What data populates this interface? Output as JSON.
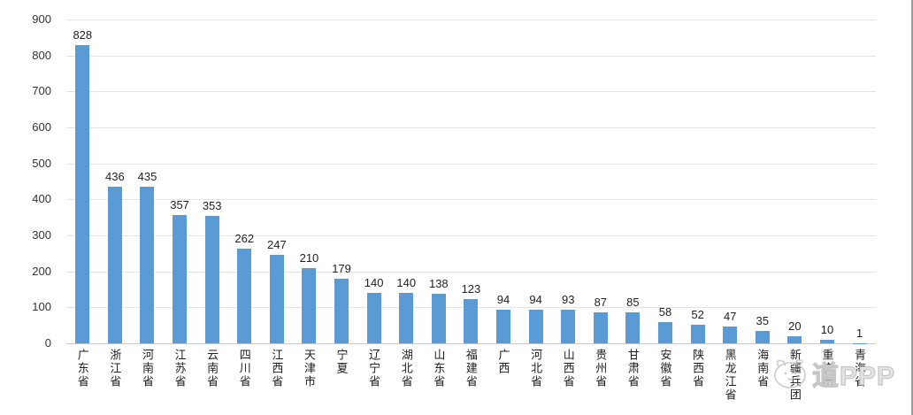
{
  "watermark": {
    "text": "道PPP",
    "logo_icon": "mascot-doodle-icon",
    "color": "#cccccc"
  },
  "chart_data": {
    "type": "bar",
    "title": "",
    "xlabel": "",
    "ylabel": "",
    "categories": [
      "广东省",
      "浙江省",
      "河南省",
      "江苏省",
      "云南省",
      "四川省",
      "江西省",
      "天津市",
      "宁夏",
      "辽宁省",
      "湖北省",
      "山东省",
      "福建省",
      "广西",
      "河北省",
      "山西省",
      "贵州省",
      "甘肃省",
      "安徽省",
      "陕西省",
      "黑龙江省",
      "海南省",
      "新疆兵团",
      "重庆市",
      "青海省"
    ],
    "values": [
      828,
      436,
      435,
      357,
      353,
      262,
      247,
      210,
      179,
      140,
      140,
      138,
      123,
      94,
      94,
      93,
      87,
      85,
      58,
      52,
      47,
      35,
      20,
      10,
      1
    ],
    "ylim": [
      0,
      900
    ],
    "yticks": [
      0,
      100,
      200,
      300,
      400,
      500,
      600,
      700,
      800,
      900
    ],
    "grid": true,
    "legend_position": "none",
    "data_labels": true,
    "bar_color": "#5b9bd5",
    "gridline_color": "#e4e4e4",
    "axis_label_color": "#333333",
    "value_label_color": "#1f1f1f"
  }
}
